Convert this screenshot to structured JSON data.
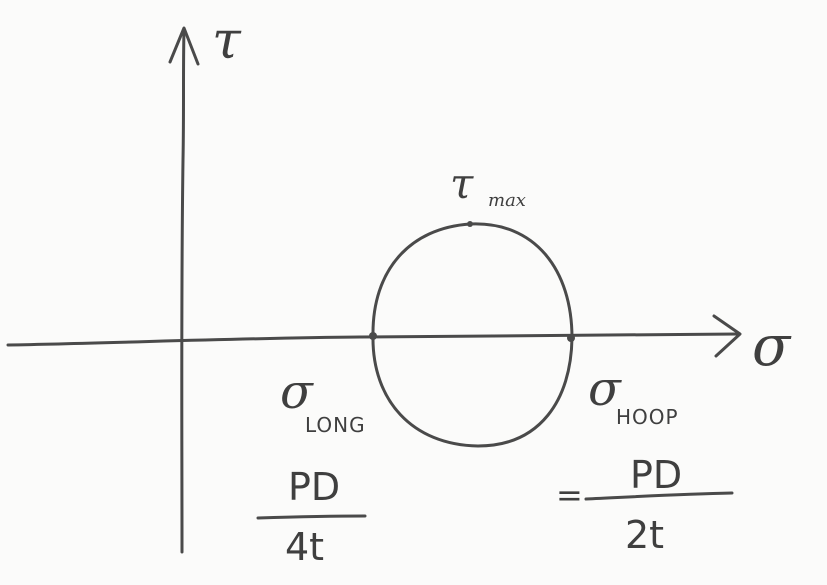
{
  "axes": {
    "vertical_label": "τ",
    "horizontal_label": "σ"
  },
  "circle": {
    "top_label_symbol": "τ",
    "top_label_subscript": "max"
  },
  "points": {
    "long": {
      "symbol": "σ",
      "subscript": "LONG",
      "numerator": "PD",
      "denominator": "4t"
    },
    "hoop": {
      "symbol": "σ",
      "subscript": "HOOP",
      "prefix": "=",
      "numerator": "PD",
      "denominator": "2t"
    }
  },
  "colors": {
    "ink": "#4a4a4a",
    "paper": "#fbfbfa"
  }
}
